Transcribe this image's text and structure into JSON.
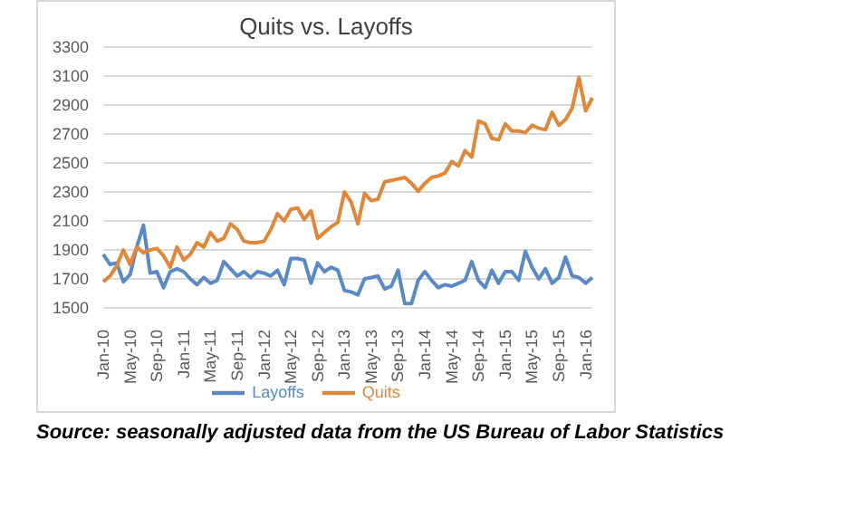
{
  "chart_data": {
    "type": "line",
    "title": "Quits vs. Layoffs",
    "categories": [
      "Jan-10",
      null,
      null,
      null,
      "May-10",
      null,
      null,
      null,
      "Sep-10",
      null,
      null,
      null,
      "Jan-11",
      null,
      null,
      null,
      "May-11",
      null,
      null,
      null,
      "Sep-11",
      null,
      null,
      null,
      "Jan-12",
      null,
      null,
      null,
      "May-12",
      null,
      null,
      null,
      "Sep-12",
      null,
      null,
      null,
      "Jan-13",
      null,
      null,
      null,
      "May-13",
      null,
      null,
      null,
      "Sep-13",
      null,
      null,
      null,
      "Jan-14",
      null,
      null,
      null,
      "May-14",
      null,
      null,
      null,
      "Sep-14",
      null,
      null,
      null,
      "Jan-15",
      null,
      null,
      null,
      "May-15",
      null,
      null,
      null,
      "Sep-15",
      null,
      null,
      null,
      "Jan-16",
      null
    ],
    "series": [
      {
        "name": "Layoffs",
        "color": "#5a8ac6",
        "values": [
          1870,
          1800,
          1810,
          1680,
          1730,
          1920,
          2070,
          1740,
          1750,
          1640,
          1750,
          1770,
          1750,
          1700,
          1660,
          1710,
          1670,
          1690,
          1820,
          1770,
          1720,
          1750,
          1710,
          1750,
          1740,
          1720,
          1760,
          1660,
          1840,
          1840,
          1830,
          1670,
          1810,
          1750,
          1780,
          1760,
          1620,
          1610,
          1590,
          1700,
          1710,
          1720,
          1630,
          1650,
          1760,
          1530,
          1530,
          1690,
          1750,
          1690,
          1640,
          1660,
          1650,
          1670,
          1690,
          1820,
          1690,
          1640,
          1760,
          1670,
          1750,
          1750,
          1690,
          1890,
          1780,
          1700,
          1770,
          1670,
          1710,
          1850,
          1720,
          1710,
          1670,
          1710
        ]
      },
      {
        "name": "Quits",
        "color": "#e0873a",
        "values": [
          1680,
          1720,
          1790,
          1900,
          1800,
          1920,
          1880,
          1900,
          1910,
          1860,
          1780,
          1920,
          1830,
          1870,
          1950,
          1920,
          2020,
          1960,
          1980,
          2080,
          2040,
          1960,
          1950,
          1950,
          1960,
          2040,
          2150,
          2100,
          2180,
          2190,
          2110,
          2170,
          1980,
          2020,
          2060,
          2090,
          2300,
          2230,
          2080,
          2290,
          2240,
          2250,
          2370,
          2380,
          2390,
          2400,
          2360,
          2305,
          2360,
          2400,
          2410,
          2430,
          2510,
          2480,
          2585,
          2540,
          2790,
          2770,
          2670,
          2660,
          2770,
          2720,
          2720,
          2710,
          2760,
          2740,
          2730,
          2850,
          2760,
          2800,
          2880,
          3090,
          2860,
          2950
        ]
      }
    ],
    "ylim": [
      1500,
      3300
    ],
    "yticks": [
      1500,
      1700,
      1900,
      2100,
      2300,
      2500,
      2700,
      2900,
      3100,
      3300
    ],
    "grid": "y",
    "legend": "bottom",
    "marker": "none",
    "line_style": "solid",
    "annotations": [
      "Source: seasonally adjusted data from the US Bureau of Labor Statistics"
    ]
  }
}
